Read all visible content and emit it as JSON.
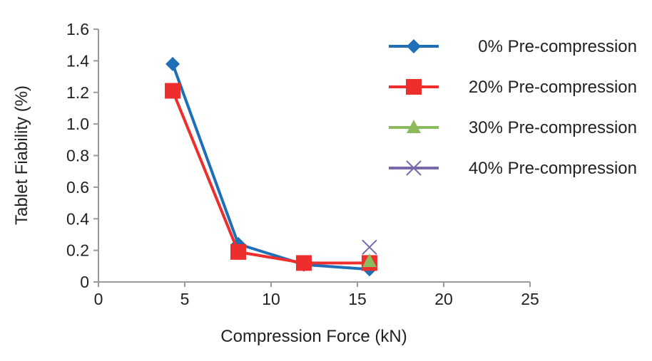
{
  "chart_data": {
    "type": "line",
    "title": "",
    "xlabel": "Compression Force (kN)",
    "ylabel": "Tablet Fiability  (%)",
    "xlim": [
      0,
      25
    ],
    "ylim": [
      0,
      1.6
    ],
    "xticks": [
      0,
      5,
      10,
      15,
      20,
      25
    ],
    "yticks": [
      "0",
      "0.2",
      "0.4",
      "0.6",
      "0.8",
      "1.0",
      "1.2",
      "1.4",
      "1.6"
    ],
    "grid": false,
    "legend_position": "top-right",
    "series": [
      {
        "name": "0% Pre-compression",
        "color": "#1f6fb8",
        "marker": "diamond",
        "x": [
          4.3,
          8.1,
          11.9,
          15.7
        ],
        "y": [
          1.38,
          0.24,
          0.11,
          0.08
        ]
      },
      {
        "name": "20% Pre-compression",
        "color": "#ee2d2d",
        "marker": "square",
        "x": [
          4.3,
          8.1,
          11.9,
          15.7
        ],
        "y": [
          1.21,
          0.19,
          0.12,
          0.12
        ]
      },
      {
        "name": "30% Pre-compression",
        "color": "#8cbb5e",
        "marker": "triangle",
        "x": [
          15.7
        ],
        "y": [
          0.13
        ]
      },
      {
        "name": "40% Pre-compression",
        "color": "#7a68ad",
        "marker": "x",
        "x": [
          15.7
        ],
        "y": [
          0.22
        ]
      }
    ]
  }
}
